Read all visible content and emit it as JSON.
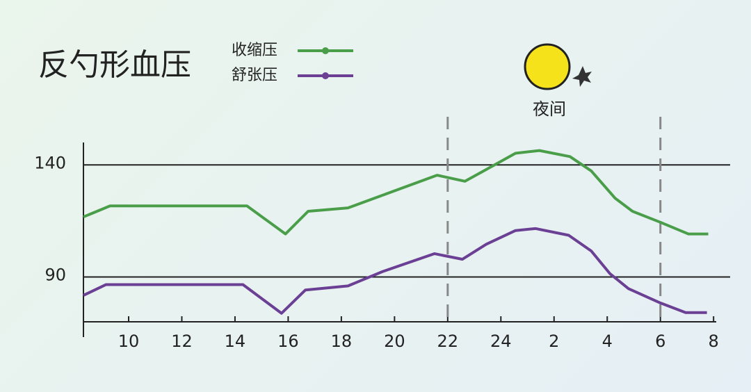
{
  "chart_data": {
    "type": "line",
    "title": "反勺形血压",
    "annotation": "夜间",
    "xlim": [
      8.3,
      32.1
    ],
    "ylim": [
      70,
      150
    ],
    "xticks": [
      10,
      12,
      14,
      16,
      18,
      20,
      22,
      24,
      {
        "value": 26,
        "label": "2"
      },
      {
        "value": 28,
        "label": "4"
      },
      {
        "value": 30,
        "label": "6"
      },
      {
        "value": 32,
        "label": "8"
      }
    ],
    "yticks": [
      90,
      140
    ],
    "grid": true,
    "night": [
      22,
      30
    ],
    "series": [
      {
        "name": "收缩压",
        "color": "#4a9e4a",
        "x": [
          8.3,
          9.3,
          14.45,
          15.9,
          16.75,
          18.25,
          21.6,
          22.65,
          23.35,
          24.55,
          25.45,
          26.6,
          27.4,
          28.3,
          28.95,
          30,
          31.05,
          31.8
        ],
        "values": [
          116.8,
          121.7,
          121.7,
          109.2,
          119.3,
          120.8,
          135.4,
          132.7,
          137.3,
          145.2,
          146.4,
          143.7,
          137.3,
          125.1,
          119.3,
          114.4,
          109.2,
          109.2
        ]
      },
      {
        "name": "舒张压",
        "color": "#6a3f94",
        "x": [
          8.3,
          9.15,
          14.3,
          15.75,
          16.65,
          18.25,
          19.55,
          21.5,
          22.55,
          23.45,
          24.55,
          25.3,
          26.55,
          27.4,
          28.1,
          28.8,
          30,
          30.95,
          31.75
        ],
        "values": [
          81.8,
          86.6,
          86.6,
          73.8,
          84.2,
          86.0,
          92.4,
          100.4,
          97.9,
          104.6,
          110.7,
          111.6,
          108.6,
          101.6,
          91.5,
          84.8,
          78.4,
          74.1,
          74.1
        ]
      }
    ]
  }
}
